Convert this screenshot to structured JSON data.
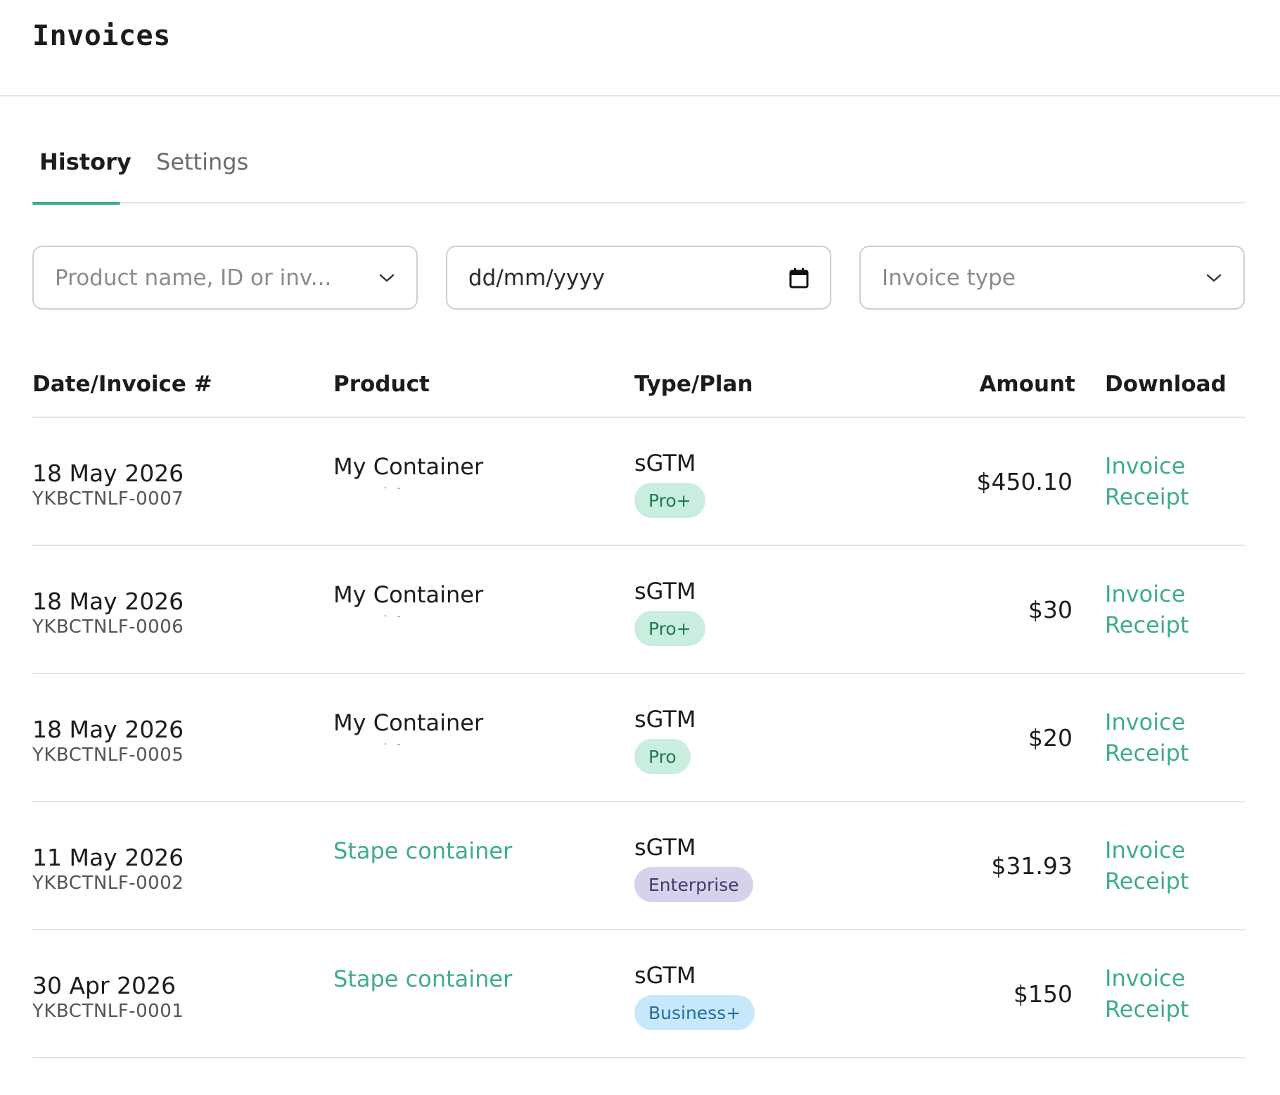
{
  "header": {
    "title": "Invoices"
  },
  "tabs": [
    {
      "label": "History",
      "active": true
    },
    {
      "label": "Settings",
      "active": false
    }
  ],
  "filters": {
    "product": {
      "placeholder": "Product name, ID or inv...",
      "icon": "chevron-down-icon"
    },
    "date": {
      "value": "dd/mm/yyyy",
      "icon": "calendar-icon"
    },
    "invoice_type": {
      "placeholder": "Invoice type",
      "icon": "chevron-down-icon"
    }
  },
  "table": {
    "headers": [
      "Date/Invoice #",
      "Product",
      "Type/Plan",
      "Amount",
      "Download"
    ],
    "rows": [
      {
        "date": "18 May 2026",
        "invoice": "YKBCTNLF-0007",
        "product": "My Container",
        "product_link": false,
        "type": "sGTM",
        "plan": "Pro+",
        "amount": "$450.10",
        "invoice_link": "Invoice",
        "receipt_link": "Receipt"
      },
      {
        "date": "18 May 2026",
        "invoice": "YKBCTNLF-0006",
        "product": "My Container",
        "product_link": false,
        "type": "sGTM",
        "plan": "Pro+",
        "amount": "$30",
        "invoice_link": "Invoice",
        "receipt_link": "Receipt"
      },
      {
        "date": "18 May 2026",
        "invoice": "YKBCTNLF-0005",
        "product": "My Container",
        "product_link": false,
        "type": "sGTM",
        "plan": "Pro",
        "amount": "$20",
        "invoice_link": "Invoice",
        "receipt_link": "Receipt"
      },
      {
        "date": "11 May 2026",
        "invoice": "YKBCTNLF-0002",
        "product": "Stape container",
        "product_link": true,
        "type": "sGTM",
        "plan": "Enterprise",
        "amount": "$31.93",
        "invoice_link": "Invoice",
        "receipt_link": "Receipt"
      },
      {
        "date": "30 Apr 2026",
        "invoice": "YKBCTNLF-0001",
        "product": "Stape container",
        "product_link": true,
        "type": "sGTM",
        "plan": "Business+",
        "amount": "$150",
        "invoice_link": "Invoice",
        "receipt_link": "Receipt"
      }
    ]
  },
  "colors": {
    "accent": "#3dae83",
    "badge_green": "#c9eedf",
    "badge_purple": "#d7d2ec",
    "badge_blue": "#c7e8fb"
  }
}
